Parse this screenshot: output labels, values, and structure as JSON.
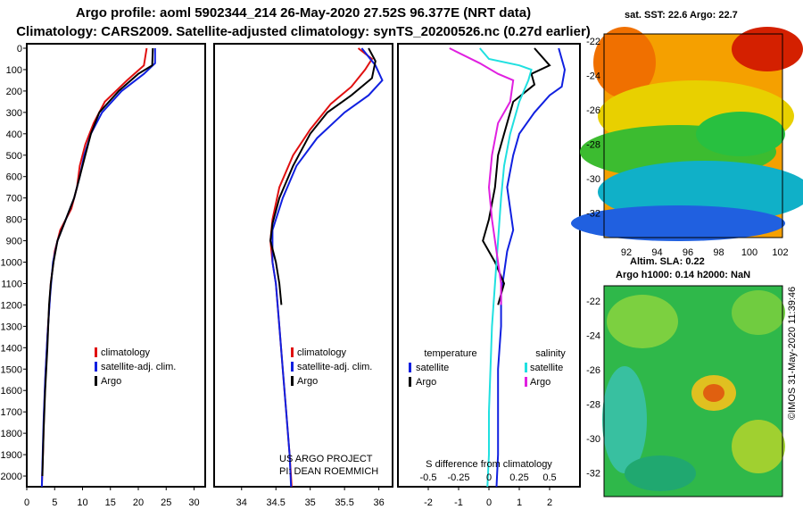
{
  "header": {
    "title1": "Argo profile: aoml 5902344_214 26-May-2020 27.52S 96.377E (NRT data)",
    "title2": "Climatology: CARS2009. Satellite-adjusted climatology: synTS_20200526.nc (0.27d earlier)"
  },
  "maps": {
    "sst_title": "sat. SST: 22.6 Argo: 22.7",
    "sla_title_line1": "Altim. SLA: 0.22",
    "sla_title_line2": "Argo h1000: 0.14 h2000: NaN",
    "credit": "©IMOS 31-May-2020 11:39:46",
    "lon_ticks": [
      "92",
      "94",
      "96",
      "98",
      "100",
      "102"
    ],
    "lat_ticks": [
      "-22",
      "-24",
      "-26",
      "-28",
      "-30",
      "-32"
    ]
  },
  "colors": {
    "climatology": "#e01010",
    "satellite": "#1020e0",
    "argo": "#000000",
    "sal_satellite": "#20e0e0",
    "sal_argo": "#e020e0"
  },
  "chart_data": [
    {
      "type": "line",
      "name": "temperature-profile",
      "xlabel": "",
      "ylabel": "",
      "xlim": [
        0,
        32
      ],
      "ylim": [
        2050,
        0
      ],
      "xticks": [
        "0",
        "5",
        "10",
        "15",
        "20",
        "25",
        "30"
      ],
      "yticks": [
        "0",
        "100",
        "200",
        "300",
        "400",
        "500",
        "600",
        "700",
        "800",
        "900",
        "1000",
        "1100",
        "1200",
        "1300",
        "1400",
        "1500",
        "1600",
        "1700",
        "1800",
        "1900",
        "2000"
      ],
      "legend": [
        "climatology",
        "satellite-adj. clim.",
        "Argo"
      ],
      "series": [
        {
          "name": "climatology",
          "color": "#e01010",
          "points": [
            [
              21.5,
              0
            ],
            [
              21,
              80
            ],
            [
              18,
              150
            ],
            [
              14,
              250
            ],
            [
              12,
              350
            ],
            [
              10.5,
              450
            ],
            [
              9.5,
              550
            ],
            [
              9,
              650
            ],
            [
              8,
              750
            ],
            [
              6,
              850
            ],
            [
              5,
              950
            ],
            [
              4.3,
              1100
            ],
            [
              3.8,
              1300
            ],
            [
              3.4,
              1500
            ],
            [
              3.1,
              1700
            ],
            [
              2.9,
              1900
            ],
            [
              2.7,
              2050
            ]
          ]
        },
        {
          "name": "satellite-adj. clim.",
          "color": "#1020e0",
          "points": [
            [
              23,
              0
            ],
            [
              23,
              70
            ],
            [
              21,
              120
            ],
            [
              17,
              200
            ],
            [
              13.5,
              300
            ],
            [
              11.5,
              400
            ],
            [
              10.3,
              500
            ],
            [
              9.5,
              600
            ],
            [
              8.5,
              700
            ],
            [
              7,
              800
            ],
            [
              5.5,
              900
            ],
            [
              4.7,
              1000
            ],
            [
              4.2,
              1150
            ],
            [
              3.7,
              1350
            ],
            [
              3.3,
              1550
            ],
            [
              3,
              1750
            ],
            [
              2.8,
              1950
            ],
            [
              2.7,
              2050
            ]
          ]
        },
        {
          "name": "Argo",
          "color": "#000000",
          "points": [
            [
              22.6,
              0
            ],
            [
              22.5,
              80
            ],
            [
              20,
              120
            ],
            [
              16.5,
              200
            ],
            [
              13,
              300
            ],
            [
              11.5,
              400
            ],
            [
              10.5,
              500
            ],
            [
              9.5,
              600
            ],
            [
              8.5,
              700
            ],
            [
              7,
              800
            ],
            [
              5.5,
              900
            ],
            [
              4.8,
              1000
            ],
            [
              4.3,
              1100
            ],
            [
              4,
              1200
            ],
            [
              3.7,
              1400
            ],
            [
              3.3,
              1600
            ],
            [
              3,
              1800
            ],
            [
              2.8,
              2000
            ]
          ]
        }
      ]
    },
    {
      "type": "line",
      "name": "salinity-profile",
      "xlabel": "",
      "ylabel": "",
      "xlim": [
        33.6,
        36.2
      ],
      "ylim": [
        2050,
        0
      ],
      "xticks": [
        "34",
        "34.5",
        "35",
        "35.5",
        "36"
      ],
      "legend": [
        "climatology",
        "satellite-adj. clim.",
        "Argo"
      ],
      "series": [
        {
          "name": "climatology",
          "color": "#e01010",
          "points": [
            [
              35.7,
              0
            ],
            [
              35.9,
              50
            ],
            [
              35.8,
              100
            ],
            [
              35.6,
              180
            ],
            [
              35.3,
              260
            ],
            [
              35,
              380
            ],
            [
              34.75,
              500
            ],
            [
              34.55,
              650
            ],
            [
              34.45,
              800
            ],
            [
              34.42,
              900
            ],
            [
              34.45,
              1000
            ],
            [
              34.5,
              1100
            ],
            [
              34.55,
              1300
            ],
            [
              34.6,
              1500
            ],
            [
              34.65,
              1700
            ],
            [
              34.7,
              1900
            ],
            [
              34.73,
              2050
            ]
          ]
        },
        {
          "name": "satellite-adj. clim.",
          "color": "#1020e0",
          "points": [
            [
              35.75,
              0
            ],
            [
              35.95,
              80
            ],
            [
              36.05,
              150
            ],
            [
              35.85,
              220
            ],
            [
              35.5,
              300
            ],
            [
              35.1,
              420
            ],
            [
              34.8,
              550
            ],
            [
              34.6,
              700
            ],
            [
              34.45,
              850
            ],
            [
              34.45,
              1000
            ],
            [
              34.5,
              1100
            ],
            [
              34.55,
              1300
            ],
            [
              34.6,
              1500
            ],
            [
              34.65,
              1700
            ],
            [
              34.7,
              1900
            ],
            [
              34.72,
              2050
            ]
          ]
        },
        {
          "name": "Argo",
          "color": "#000000",
          "points": [
            [
              35.85,
              0
            ],
            [
              35.95,
              60
            ],
            [
              35.9,
              140
            ],
            [
              35.6,
              220
            ],
            [
              35.25,
              300
            ],
            [
              35,
              400
            ],
            [
              34.75,
              550
            ],
            [
              34.55,
              700
            ],
            [
              34.45,
              820
            ],
            [
              34.42,
              900
            ],
            [
              34.5,
              1000
            ],
            [
              34.55,
              1100
            ],
            [
              34.58,
              1200
            ]
          ]
        }
      ]
    },
    {
      "type": "line",
      "name": "difference-from-climatology",
      "xlabel": "S difference from climatology",
      "ylabel": "",
      "xlim": [
        -3,
        3
      ],
      "ylim": [
        2050,
        0
      ],
      "xticks_top": [
        "-0.5",
        "-0.25",
        "0",
        "0.25",
        "0.5"
      ],
      "xticks": [
        "-2",
        "-1",
        "0",
        "1",
        "2"
      ],
      "legend": [
        "temperature satellite",
        "temperature Argo",
        "salinity satellite",
        "salinity Argo"
      ],
      "series": [
        {
          "name": "temperature satellite",
          "color": "#1020e0",
          "points": [
            [
              2.3,
              0
            ],
            [
              2.5,
              100
            ],
            [
              2.4,
              180
            ],
            [
              2.0,
              220
            ],
            [
              1.5,
              300
            ],
            [
              1,
              400
            ],
            [
              0.8,
              500
            ],
            [
              0.6,
              650
            ],
            [
              0.7,
              750
            ],
            [
              0.8,
              850
            ],
            [
              0.6,
              950
            ],
            [
              0.5,
              1050
            ],
            [
              0.4,
              1150
            ],
            [
              0.4,
              1300
            ],
            [
              0.3,
              1500
            ],
            [
              0.3,
              1700
            ],
            [
              0.3,
              1900
            ],
            [
              0.25,
              2050
            ]
          ]
        },
        {
          "name": "temperature Argo",
          "color": "#000000",
          "points": [
            [
              1.5,
              0
            ],
            [
              2.0,
              80
            ],
            [
              1.4,
              120
            ],
            [
              1.5,
              170
            ],
            [
              0.8,
              250
            ],
            [
              0.6,
              350
            ],
            [
              0.3,
              500
            ],
            [
              0.2,
              650
            ],
            [
              0,
              800
            ],
            [
              -0.2,
              900
            ],
            [
              0.2,
              1000
            ],
            [
              0.5,
              1100
            ],
            [
              0.3,
              1200
            ]
          ]
        },
        {
          "name": "salinity satellite",
          "color": "#20e0e0",
          "points": [
            [
              -0.3,
              0
            ],
            [
              0,
              50
            ],
            [
              1,
              80
            ],
            [
              1.4,
              100
            ],
            [
              1.3,
              150
            ],
            [
              1,
              250
            ],
            [
              0.7,
              400
            ],
            [
              0.5,
              550
            ],
            [
              0.4,
              700
            ],
            [
              0.3,
              900
            ],
            [
              0.2,
              1100
            ],
            [
              0.1,
              1300
            ],
            [
              0.05,
              1500
            ],
            [
              0,
              1700
            ],
            [
              0,
              1900
            ],
            [
              -0.05,
              2050
            ]
          ]
        },
        {
          "name": "salinity Argo",
          "color": "#e020e0",
          "points": [
            [
              -1.3,
              0
            ],
            [
              -0.3,
              70
            ],
            [
              0.3,
              120
            ],
            [
              0.8,
              150
            ],
            [
              0.7,
              250
            ],
            [
              0.3,
              350
            ],
            [
              0.1,
              500
            ],
            [
              0,
              650
            ],
            [
              0.1,
              800
            ],
            [
              0.2,
              900
            ],
            [
              0.3,
              1000
            ],
            [
              0.4,
              1100
            ],
            [
              0.4,
              1200
            ]
          ]
        }
      ]
    }
  ],
  "legends": {
    "profile_legend": [
      "climatology",
      "satellite-adj. clim.",
      "Argo"
    ],
    "diff_temperature_heading": "temperature",
    "diff_salinity_heading": "salinity",
    "diff_satellite": "satellite",
    "diff_argo": "Argo",
    "project_line1": "US ARGO PROJECT",
    "project_line2": "PI: DEAN ROEMMICH"
  }
}
